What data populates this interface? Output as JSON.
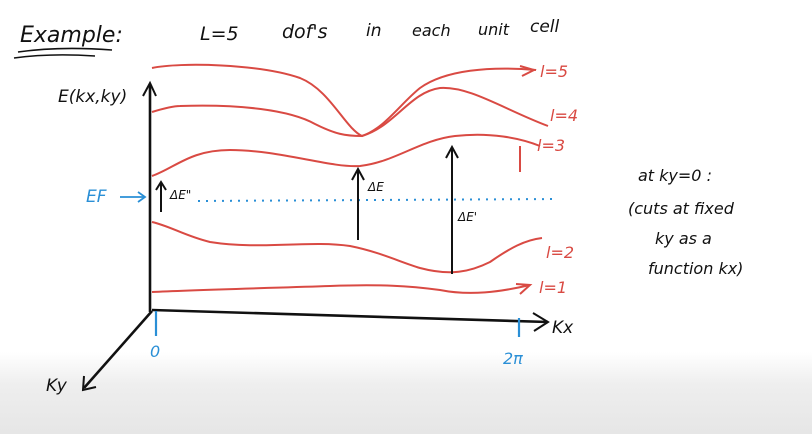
{
  "header": {
    "example_label": "Example:",
    "statement": [
      "L=5",
      "dof's",
      "in",
      "each",
      "unit",
      "cell"
    ]
  },
  "axes": {
    "energy_label": "E(kx,ky)",
    "kx_label": "Kx",
    "ky_label": "Ky",
    "origin_label": "0",
    "kx_end_label": "2π"
  },
  "fermi": {
    "label": "EF",
    "color": "#2a8fd6"
  },
  "bands": {
    "color": "#d94a43",
    "labels": [
      "l=5",
      "l=4",
      "l=3",
      "l=2",
      "l=1"
    ]
  },
  "gaps": {
    "left": "ΔE\"",
    "middle": "ΔE",
    "right": "ΔE'"
  },
  "note": {
    "lines": [
      "at ky=0 :",
      "(cuts at fixed",
      "ky as a",
      "function kx)"
    ]
  }
}
